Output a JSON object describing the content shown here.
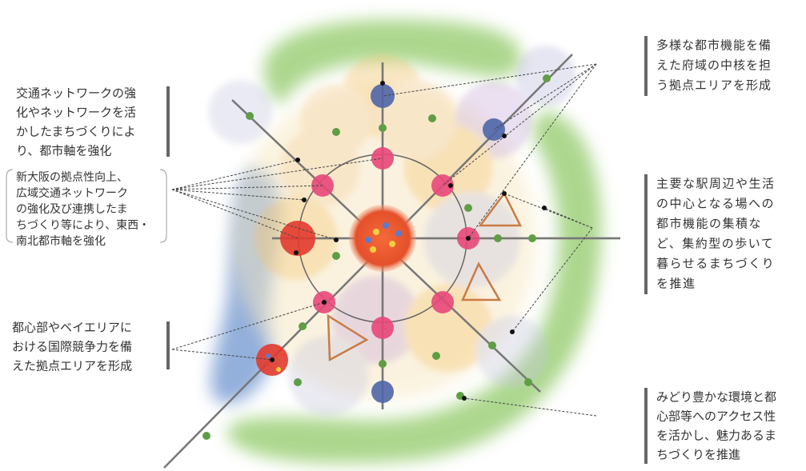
{
  "callouts": [
    {
      "lines": [
        "交通ネットワークの強",
        "化やネットワークを活",
        "かしたまちづくりによ",
        "り、都市軸を強化"
      ]
    },
    {
      "lines": [
        "新大阪の拠点性向上、",
        "広域交通ネットワーク",
        "の強化及び連携したま",
        "ちづくり等により、東西・",
        "南北都市軸を強化"
      ]
    },
    {
      "lines": [
        "都心部やベイエリアに",
        "おける国際競争力を備",
        "えた拠点エリアを形成"
      ]
    },
    {
      "lines": [
        "多様な都市機能を備",
        "えた府域の中核を担",
        "う拠点エリアを形成"
      ]
    },
    {
      "lines": [
        "主要な駅周辺や生活",
        "の中心となる場への",
        "都市機能の集積な",
        "ど、集約型の歩いて",
        "暮らせるまちづくり",
        "を推進"
      ]
    },
    {
      "lines": [
        "みどり豊かな環境と都",
        "心部等へのアクセス性",
        "を活かし、魅力あるま",
        "ちづくりを推進"
      ]
    }
  ]
}
